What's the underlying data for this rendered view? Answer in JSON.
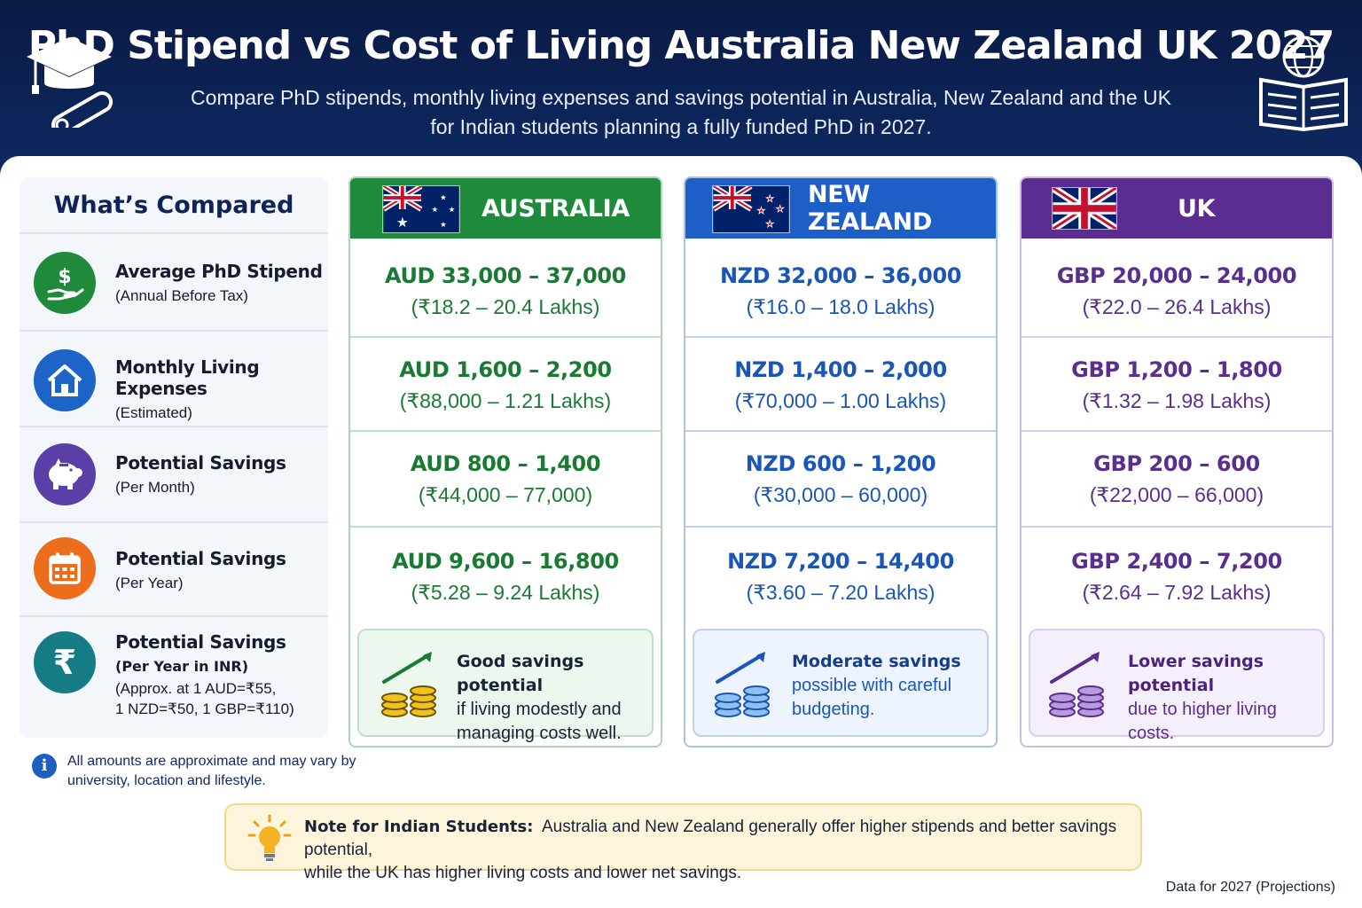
{
  "header": {
    "title": "PhD Stipend vs Cost of Living Australia New Zealand UK 2027",
    "subtitle_line1": "Compare PhD stipends, monthly living expenses and savings potential in Australia, New Zealand and the UK",
    "subtitle_line2": "for Indian students planning a fully funded PhD in 2027."
  },
  "labels": {
    "heading": "What’s Compared",
    "rows": [
      {
        "main": "Average PhD Stipend",
        "sub": "(Annual Before Tax)",
        "icon": "money-hand-icon",
        "color": "#1f8a3b"
      },
      {
        "main": "Monthly Living Expenses",
        "sub": "(Estimated)",
        "icon": "house-icon",
        "color": "#1d64c9"
      },
      {
        "main": "Potential Savings",
        "sub": "(Per Month)",
        "icon": "piggy-bank-icon",
        "color": "#5a3fa6"
      },
      {
        "main": "Potential Savings",
        "sub": "(Per Year)",
        "icon": "calendar-icon",
        "color": "#ec6d1c"
      },
      {
        "main": "Potential Savings",
        "sub": "(Per Year in INR)",
        "sub2": "(Approx. at 1 AUD=₹55,",
        "sub3": "1 NZD=₹50, 1 GBP=₹110)",
        "icon": "rupee-icon",
        "color": "#157c85"
      }
    ]
  },
  "countries": [
    {
      "name": "AUSTRALIA",
      "accent": "#1f8a3b",
      "border": "#a9d7b4",
      "text": "#1a7a33",
      "cells": [
        {
          "v1": "AUD 33,000 – 37,000",
          "v2": "(₹18.2 – 20.4 Lakhs)"
        },
        {
          "v1": "AUD 1,600 – 2,200",
          "v2": "(₹88,000 – 1.21 Lakhs)"
        },
        {
          "v1": "AUD 800 – 1,400",
          "v2": "(₹44,000 – 77,000)"
        },
        {
          "v1": "AUD 9,600 – 16,800",
          "v2": "(₹5.28 – 9.24 Lakhs)"
        }
      ],
      "note_bold": "Good savings potential",
      "note_line2": "if living modestly and",
      "note_line3": "managing costs well."
    },
    {
      "name": "NEW ZEALAND",
      "accent": "#1d5fc7",
      "border": "#a7c2ec",
      "text": "#1a55b8",
      "cells": [
        {
          "v1": "NZD 32,000 – 36,000",
          "v2": "(₹16.0 – 18.0 Lakhs)"
        },
        {
          "v1": "NZD 1,400 – 2,000",
          "v2": "(₹70,000 – 1.00 Lakhs)"
        },
        {
          "v1": "NZD 600 – 1,200",
          "v2": "(₹30,000 – 60,000)"
        },
        {
          "v1": "NZD 7,200 – 14,400",
          "v2": "(₹3.60 – 7.20 Lakhs)"
        }
      ],
      "note_bold": "Moderate savings",
      "note_line2": "possible with careful",
      "note_line3": "budgeting."
    },
    {
      "name": "UK",
      "accent": "#5b2d91",
      "border": "#cdb8e6",
      "text": "#5a2e8e",
      "cells": [
        {
          "v1": "GBP 20,000 – 24,000",
          "v2": "(₹22.0 – 26.4 Lakhs)"
        },
        {
          "v1": "GBP 1,200 – 1,800",
          "v2": "(₹1.32 – 1.98 Lakhs)"
        },
        {
          "v1": "GBP 200 – 600",
          "v2": "(₹22,000 – 66,000)"
        },
        {
          "v1": "GBP 2,400 – 7,200",
          "v2": "(₹2.64 – 7.92 Lakhs)"
        }
      ],
      "note_bold": "Lower savings potential",
      "note_line2": "due to higher living",
      "note_line3": "costs."
    }
  ],
  "disclaimer": "All amounts are approximate and may vary by university, location and lifestyle.",
  "footnote": {
    "bold": "Note for Indian Students:",
    "line1": "Australia and New Zealand generally offer higher stipends and better savings potential,",
    "line2": "while the UK has higher living costs and lower net savings."
  },
  "data_note": "Data for 2027 (Projections)"
}
